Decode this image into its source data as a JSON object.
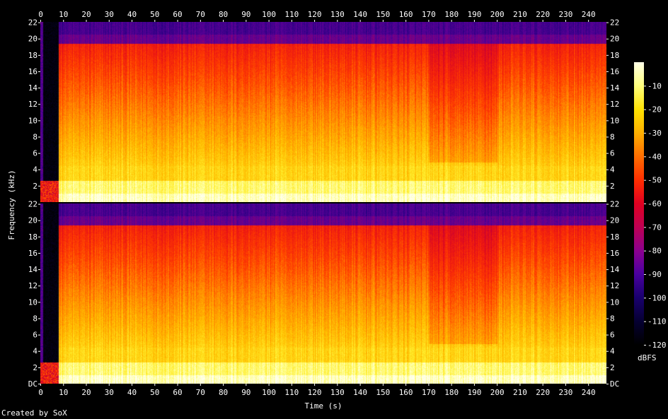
{
  "footer": {
    "credit": "Created by SoX"
  },
  "chart_data": {
    "type": "heatmap",
    "xlabel": "Time (s)",
    "ylabel": "Frequency (kHz)",
    "colorbar_label": "dBFS",
    "xlim": [
      0,
      248
    ],
    "x_ticks": [
      "0",
      "10",
      "20",
      "30",
      "40",
      "50",
      "60",
      "70",
      "80",
      "90",
      "100",
      "110",
      "120",
      "130",
      "140",
      "150",
      "160",
      "170",
      "180",
      "190",
      "200",
      "210",
      "220",
      "230",
      "240"
    ],
    "x_tick_values": [
      0,
      10,
      20,
      30,
      40,
      50,
      60,
      70,
      80,
      90,
      100,
      110,
      120,
      130,
      140,
      150,
      160,
      170,
      180,
      190,
      200,
      210,
      220,
      230,
      240
    ],
    "ylim_khz": [
      0,
      22.05
    ],
    "y_ticks_top": [
      "2",
      "4",
      "6",
      "8",
      "10",
      "12",
      "14",
      "16",
      "18",
      "20",
      "22"
    ],
    "y_tick_values_top": [
      2,
      4,
      6,
      8,
      10,
      12,
      14,
      16,
      18,
      20,
      22
    ],
    "y_ticks_bottom": [
      "DC",
      "2",
      "4",
      "6",
      "8",
      "10",
      "12",
      "14",
      "16",
      "18",
      "20",
      "22"
    ],
    "y_tick_values_bottom": [
      0,
      2,
      4,
      6,
      8,
      10,
      12,
      14,
      16,
      18,
      20,
      22
    ],
    "colorbar_range_db": [
      -120,
      0
    ],
    "colorbar_ticks": [
      "-10",
      "-20",
      "-30",
      "-40",
      "-50",
      "-60",
      "-70",
      "-80",
      "-90",
      "-100",
      "-110",
      "-120"
    ],
    "colorbar_tick_values": [
      -10,
      -20,
      -30,
      -40,
      -50,
      -60,
      -70,
      -80,
      -90,
      -100,
      -110,
      -120
    ],
    "channels": [
      {
        "id": "channel-1",
        "panel": "top"
      },
      {
        "id": "channel-2",
        "panel": "bottom"
      }
    ],
    "silence_end_s": 8,
    "quiet_high_band_segments_s": [
      [
        170,
        200
      ]
    ]
  }
}
